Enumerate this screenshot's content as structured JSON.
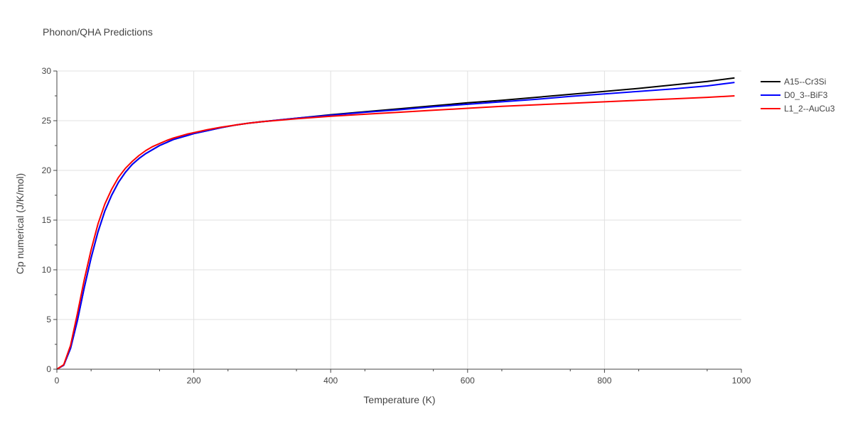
{
  "chart_data": {
    "type": "line",
    "title": "Phonon/QHA Predictions",
    "xlabel": "Temperature (K)",
    "ylabel": "Cp numerical (J/K/mol)",
    "xlim": [
      0,
      1000
    ],
    "ylim": [
      0,
      30
    ],
    "x_ticks": [
      0,
      200,
      400,
      600,
      800,
      1000
    ],
    "y_ticks": [
      0,
      5,
      10,
      15,
      20,
      25,
      30
    ],
    "grid": true,
    "legend_position": "top-right",
    "series": [
      {
        "name": "A15--Cr3Si",
        "color": "#000000",
        "x": [
          0,
          10,
          20,
          30,
          40,
          50,
          60,
          70,
          80,
          90,
          100,
          110,
          120,
          130,
          140,
          150,
          160,
          170,
          180,
          190,
          200,
          220,
          240,
          260,
          280,
          300,
          350,
          400,
          450,
          500,
          550,
          600,
          650,
          700,
          750,
          800,
          850,
          900,
          950,
          990
        ],
        "y": [
          0,
          0.4,
          2.1,
          4.9,
          8.2,
          11.2,
          13.8,
          15.9,
          17.5,
          18.8,
          19.8,
          20.6,
          21.2,
          21.7,
          22.1,
          22.5,
          22.8,
          23.1,
          23.3,
          23.5,
          23.7,
          24.0,
          24.3,
          24.55,
          24.75,
          24.9,
          25.25,
          25.6,
          25.9,
          26.2,
          26.5,
          26.8,
          27.05,
          27.35,
          27.65,
          27.95,
          28.25,
          28.6,
          28.95,
          29.3
        ]
      },
      {
        "name": "D0_3--BiF3",
        "color": "#0000ff",
        "x": [
          0,
          10,
          20,
          30,
          40,
          50,
          60,
          70,
          80,
          90,
          100,
          110,
          120,
          130,
          140,
          150,
          160,
          170,
          180,
          190,
          200,
          220,
          240,
          260,
          280,
          300,
          350,
          400,
          450,
          500,
          550,
          600,
          650,
          700,
          750,
          800,
          850,
          900,
          950,
          990
        ],
        "y": [
          0,
          0.4,
          2.1,
          4.9,
          8.2,
          11.2,
          13.8,
          15.9,
          17.5,
          18.8,
          19.8,
          20.6,
          21.2,
          21.7,
          22.1,
          22.5,
          22.8,
          23.1,
          23.3,
          23.5,
          23.7,
          24.0,
          24.3,
          24.55,
          24.75,
          24.9,
          25.25,
          25.55,
          25.85,
          26.1,
          26.4,
          26.65,
          26.9,
          27.15,
          27.45,
          27.7,
          27.95,
          28.2,
          28.5,
          28.85
        ]
      },
      {
        "name": "L1_2--AuCu3",
        "color": "#ff0000",
        "x": [
          0,
          10,
          20,
          30,
          40,
          50,
          60,
          70,
          80,
          90,
          100,
          110,
          120,
          130,
          140,
          150,
          160,
          170,
          180,
          190,
          200,
          220,
          240,
          260,
          280,
          300,
          350,
          400,
          450,
          500,
          550,
          600,
          650,
          700,
          750,
          800,
          850,
          900,
          950,
          990
        ],
        "y": [
          0,
          0.45,
          2.4,
          5.6,
          9.0,
          12.0,
          14.6,
          16.6,
          18.1,
          19.3,
          20.2,
          20.9,
          21.5,
          22.0,
          22.4,
          22.7,
          23.0,
          23.25,
          23.45,
          23.65,
          23.8,
          24.1,
          24.35,
          24.55,
          24.75,
          24.9,
          25.2,
          25.45,
          25.65,
          25.85,
          26.05,
          26.25,
          26.45,
          26.6,
          26.75,
          26.9,
          27.05,
          27.2,
          27.35,
          27.5
        ]
      }
    ]
  }
}
